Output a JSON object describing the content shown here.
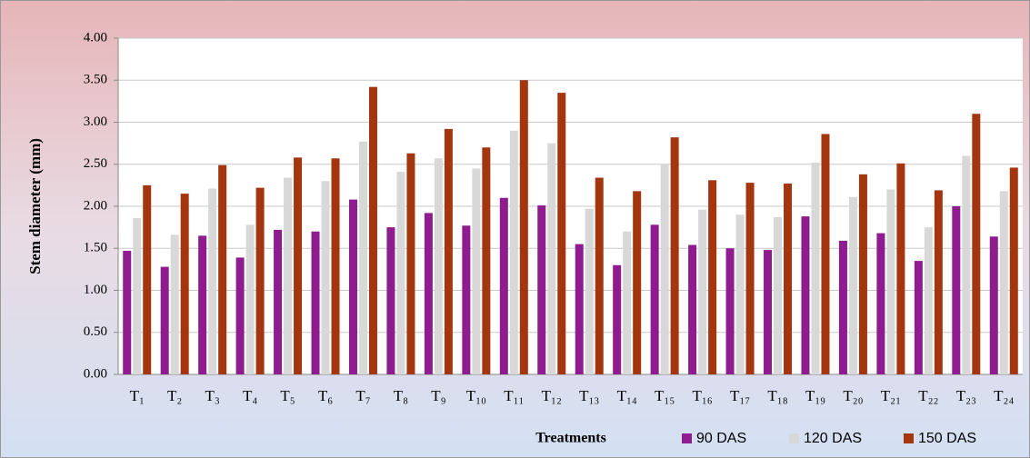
{
  "chart_data": {
    "type": "bar",
    "x_label": "Treatments",
    "y_label": "Stem diameter (mm)",
    "categories": [
      "T₁",
      "T₂",
      "T₃",
      "T₄",
      "T₅",
      "T₆",
      "T₇",
      "T₈",
      "T₉",
      "T₁₀",
      "T₁₁",
      "T₁₂",
      "T₁₃",
      "T₁₄",
      "T₁₅",
      "T₁₆",
      "T₁₇",
      "T₁₈",
      "T₁₉",
      "T₂₀",
      "T₂₁",
      "T₂₂",
      "T₂₃",
      "T₂₄"
    ],
    "series": [
      {
        "name": "90 DAS",
        "color": "#8e1c8e",
        "values": [
          1.47,
          1.28,
          1.65,
          1.39,
          1.72,
          1.7,
          2.08,
          1.75,
          1.92,
          1.77,
          2.1,
          2.01,
          1.55,
          1.3,
          1.78,
          1.54,
          1.5,
          1.48,
          1.88,
          1.59,
          1.68,
          1.35,
          2.0,
          1.64
        ]
      },
      {
        "name": "120 DAS",
        "color": "#d8d8d8",
        "values": [
          1.86,
          1.66,
          2.21,
          1.78,
          2.34,
          2.3,
          2.77,
          2.41,
          2.57,
          2.45,
          2.9,
          2.75,
          1.97,
          1.7,
          2.5,
          1.96,
          1.9,
          1.87,
          2.52,
          2.11,
          2.2,
          1.75,
          2.6,
          2.18
        ]
      },
      {
        "name": "150 DAS",
        "color": "#a3360f",
        "values": [
          2.25,
          2.15,
          2.49,
          2.22,
          2.58,
          2.57,
          3.42,
          2.63,
          2.92,
          2.7,
          3.5,
          3.35,
          2.34,
          2.18,
          2.82,
          2.31,
          2.28,
          2.27,
          2.86,
          2.38,
          2.51,
          2.19,
          3.1,
          2.46
        ]
      }
    ],
    "ylim": [
      0,
      4
    ],
    "yticks": [
      {
        "value": 0,
        "label": "0.00"
      },
      {
        "value": 0.5,
        "label": "0.50"
      },
      {
        "value": 1,
        "label": "1.00"
      },
      {
        "value": 1.5,
        "label": "1.50"
      },
      {
        "value": 2,
        "label": "2.00"
      },
      {
        "value": 2.5,
        "label": "2.50"
      },
      {
        "value": 3,
        "label": "3.00"
      },
      {
        "value": 3.5,
        "label": "3.50"
      },
      {
        "value": 4,
        "label": "4.00"
      }
    ],
    "grid": true
  }
}
